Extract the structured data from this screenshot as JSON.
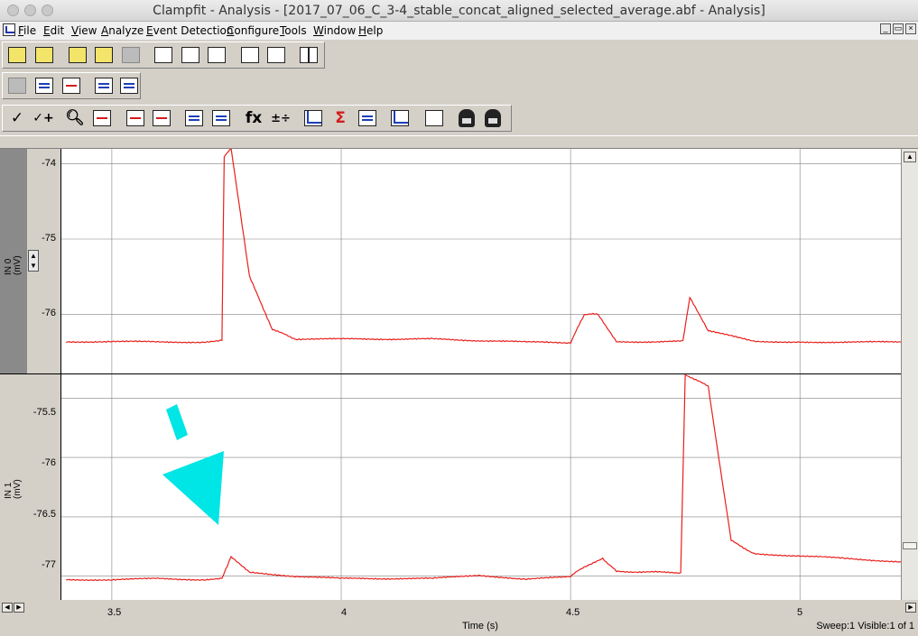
{
  "window": {
    "title": "Clampfit - Analysis - [2017_07_06_C_3-4_stable_concat_aligned_selected_average.abf - Analysis]"
  },
  "menu": [
    "File",
    "Edit",
    "View",
    "Analyze",
    "Event Detection",
    "Configure",
    "Tools",
    "Window",
    "Help"
  ],
  "mdi_controls": [
    "_",
    "▭",
    "×"
  ],
  "toolbar": {
    "check_symbol": "✓",
    "check_plus_symbol": "✓+",
    "fx_symbol": "fx",
    "arith_symbol": "±÷",
    "sigma_symbol": "Σ"
  },
  "icons": [
    "open-file-icon",
    "open-data-icon",
    "save-icon",
    "print-icon",
    "print-preview-icon",
    "split-window-icon",
    "check-icon",
    "zoom-icon",
    "fx-icon",
    "lock-icon"
  ],
  "colors": {
    "trace": "#e8201c",
    "annotation": "#00e5e5",
    "grid": "#808080"
  },
  "plots": {
    "top": {
      "channel_label": "IN 0",
      "unit": "(mV)",
      "yticks": [
        "-74",
        "-75",
        "-76"
      ]
    },
    "bottom": {
      "channel_label": "IN 1",
      "unit": "(mV)",
      "yticks": [
        "-75.5",
        "-76",
        "-76.5",
        "-77"
      ]
    }
  },
  "chart_data": [
    {
      "type": "line",
      "series": [
        {
          "values": [
            [
              3.4,
              -76.37
            ],
            [
              3.5,
              -76.36
            ],
            [
              3.6,
              -76.37
            ],
            [
              3.7,
              -76.37
            ],
            [
              3.74,
              -76.35
            ],
            [
              3.745,
              -73.9
            ],
            [
              3.76,
              -73.8
            ],
            [
              3.8,
              -75.5
            ],
            [
              3.85,
              -76.2
            ],
            [
              3.9,
              -76.33
            ],
            [
              4.0,
              -76.33
            ],
            [
              4.2,
              -76.33
            ],
            [
              4.4,
              -76.37
            ],
            [
              4.5,
              -76.38
            ],
            [
              4.53,
              -76.0
            ],
            [
              4.56,
              -76.0
            ],
            [
              4.6,
              -76.37
            ],
            [
              4.745,
              -76.36
            ],
            [
              4.76,
              -75.77
            ],
            [
              4.8,
              -76.22
            ],
            [
              4.9,
              -76.36
            ],
            [
              5.0,
              -76.37
            ],
            [
              5.22,
              -76.37
            ]
          ]
        }
      ],
      "xlabel": "Time (s)",
      "ylabel": "IN 0 (mV)",
      "xlim": [
        3.39,
        5.22
      ],
      "ylim": [
        -76.8,
        -73.8
      ],
      "x_ticks": [
        3.5,
        4,
        4.5,
        5
      ],
      "y_ticks": [
        -74,
        -75,
        -76
      ],
      "grid": true
    },
    {
      "type": "line",
      "series": [
        {
          "values": [
            [
              3.4,
              -77.03
            ],
            [
              3.5,
              -77.03
            ],
            [
              3.6,
              -77.02
            ],
            [
              3.7,
              -77.03
            ],
            [
              3.74,
              -77.02
            ],
            [
              3.76,
              -76.84
            ],
            [
              3.8,
              -76.97
            ],
            [
              3.9,
              -77.0
            ],
            [
              4.0,
              -77.02
            ],
            [
              4.2,
              -77.02
            ],
            [
              4.3,
              -76.99
            ],
            [
              4.4,
              -77.03
            ],
            [
              4.5,
              -77.0
            ],
            [
              4.53,
              -76.92
            ],
            [
              4.57,
              -76.85
            ],
            [
              4.6,
              -76.96
            ],
            [
              4.74,
              -76.97
            ],
            [
              4.75,
              -75.3
            ],
            [
              4.8,
              -75.4
            ],
            [
              4.85,
              -76.7
            ],
            [
              4.9,
              -76.81
            ],
            [
              5.0,
              -76.83
            ],
            [
              5.1,
              -76.85
            ],
            [
              5.22,
              -76.88
            ]
          ]
        }
      ],
      "xlabel": "Time (s)",
      "ylabel": "IN 1 (mV)",
      "xlim": [
        3.39,
        5.22
      ],
      "ylim": [
        -77.2,
        -75.3
      ],
      "x_ticks": [
        3.5,
        4,
        4.5,
        5
      ],
      "y_ticks": [
        -75.5,
        -76,
        -76.5,
        -77
      ],
      "grid": true
    }
  ],
  "xaxis": {
    "label": "Time (s)",
    "ticks": [
      "3.5",
      "4",
      "4.5",
      "5"
    ]
  },
  "status": "Sweep:1 Visible:1 of 1"
}
